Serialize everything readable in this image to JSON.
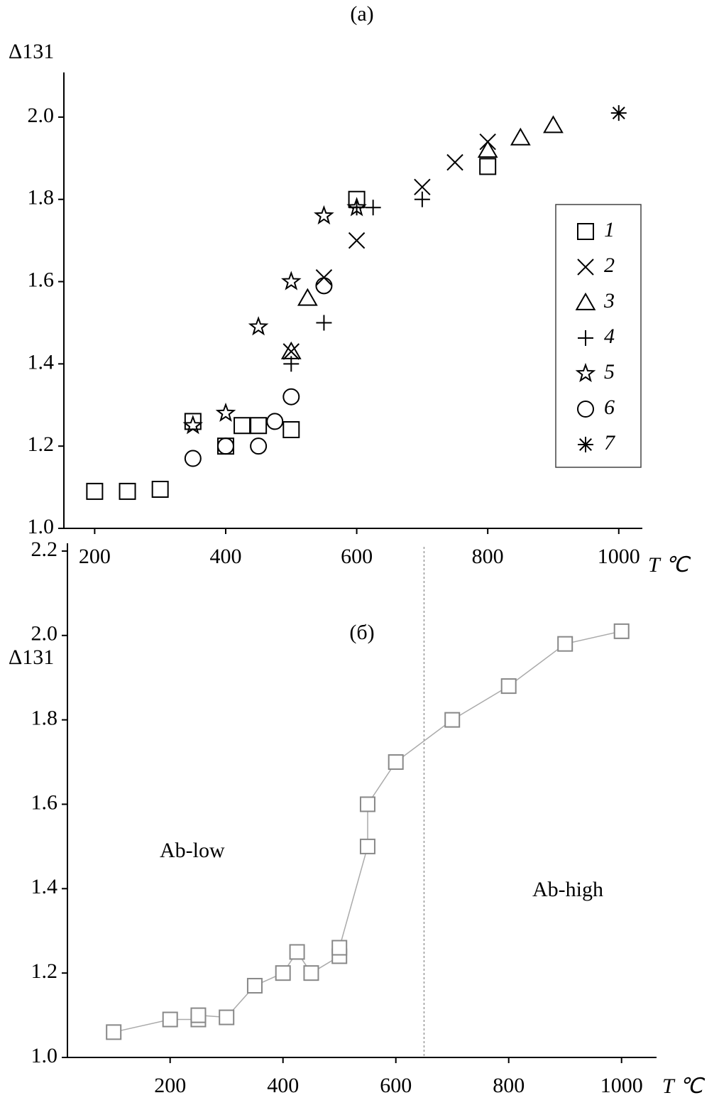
{
  "chart_data": [
    {
      "type": "scatter",
      "title": "(a)",
      "y_label": "Δ131",
      "x_label": "T ℃",
      "xlim": [
        153,
        1036
      ],
      "ylim": [
        1.0,
        2.1
      ],
      "xticks": [
        200,
        400,
        600,
        800,
        1000
      ],
      "yticks": [
        {
          "value": 1.0,
          "label": "1.0"
        },
        1.2,
        1.4,
        1.6,
        1.8,
        {
          "value": 2.0,
          "label": "2.0"
        }
      ],
      "legend": "right",
      "series": [
        {
          "name": "1",
          "marker": "square",
          "color": "#000000",
          "x": [
            200,
            250,
            300,
            350,
            400,
            425,
            450,
            500,
            600,
            800
          ],
          "values": [
            1.09,
            1.09,
            1.095,
            1.26,
            1.2,
            1.25,
            1.25,
            1.24,
            1.8,
            1.88
          ]
        },
        {
          "name": "2",
          "marker": "cross",
          "color": "#000000",
          "x": [
            500,
            550,
            600,
            700,
            750,
            800
          ],
          "values": [
            1.43,
            1.61,
            1.7,
            1.83,
            1.89,
            1.94
          ]
        },
        {
          "name": "3",
          "marker": "triangle",
          "color": "#000000",
          "x": [
            500,
            525,
            800,
            850,
            900
          ],
          "values": [
            1.43,
            1.56,
            1.92,
            1.95,
            1.98
          ]
        },
        {
          "name": "4",
          "marker": "plus",
          "color": "#000000",
          "x": [
            500,
            550,
            600,
            625,
            700
          ],
          "values": [
            1.4,
            1.5,
            1.78,
            1.78,
            1.8
          ]
        },
        {
          "name": "5",
          "marker": "star",
          "color": "#000000",
          "x": [
            350,
            400,
            450,
            500,
            550,
            600
          ],
          "values": [
            1.25,
            1.28,
            1.49,
            1.6,
            1.76,
            1.78
          ]
        },
        {
          "name": "6",
          "marker": "circle",
          "color": "#000000",
          "x": [
            350,
            400,
            450,
            475,
            500,
            550
          ],
          "values": [
            1.17,
            1.2,
            1.2,
            1.26,
            1.32,
            1.59
          ]
        },
        {
          "name": "7",
          "marker": "asterisk",
          "color": "#000000",
          "x": [
            1000
          ],
          "values": [
            2.01
          ]
        }
      ]
    },
    {
      "type": "line",
      "title": "(б)",
      "y_label": "Δ131",
      "x_label": "T ℃",
      "xlim": [
        18,
        1062
      ],
      "ylim": [
        1.0,
        2.21
      ],
      "xticks": [
        200,
        400,
        600,
        800,
        1000
      ],
      "yticks": [
        {
          "value": 1.0,
          "label": "1.0"
        },
        1.2,
        1.4,
        1.6,
        1.8,
        {
          "value": 2.0,
          "label": "2.0"
        },
        2.2
      ],
      "marker": "square",
      "color": "#888888",
      "line_color": "#aaaaaa",
      "threshold": 650,
      "annotations": [
        "Ab-low",
        "Ab-high"
      ],
      "x": [
        100,
        200,
        250,
        250,
        300,
        350,
        400,
        425,
        450,
        500,
        500,
        550,
        550,
        600,
        700,
        800,
        900,
        1000
      ],
      "values": [
        1.06,
        1.09,
        1.09,
        1.1,
        1.095,
        1.17,
        1.2,
        1.25,
        1.2,
        1.24,
        1.26,
        1.5,
        1.6,
        1.7,
        1.8,
        1.88,
        1.98,
        2.01
      ]
    }
  ]
}
